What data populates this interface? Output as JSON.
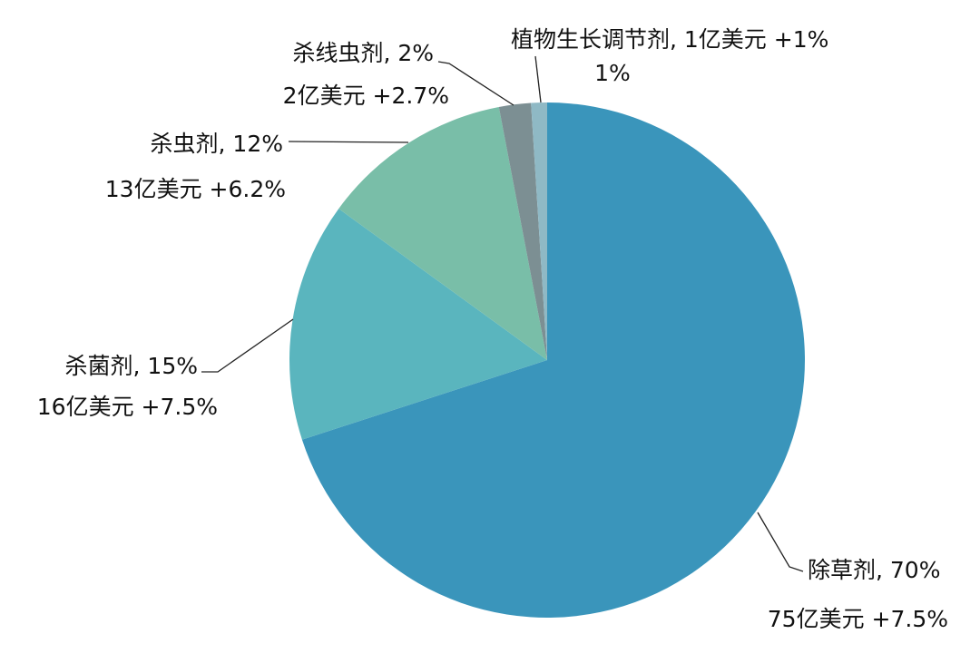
{
  "chart_data": {
    "type": "pie",
    "values": [
      70,
      15,
      12,
      2,
      1
    ],
    "value_labels": [
      "除草剂, 70%",
      "杀菌剂, 15%",
      "杀虫剂, 12%",
      "杀线虫剂, 2%",
      "1%"
    ],
    "annotations": [
      "75亿美元 +7.5%",
      "16亿美元 +7.5%",
      "13亿美元 +6.2%",
      "2亿美元 +2.7%",
      "植物生长调节剂, 1亿美元 +1%"
    ],
    "colors": [
      "#3a95bb",
      "#5ab5be",
      "#79bea8",
      "#7c8f93",
      "#8fb9c5"
    ]
  }
}
